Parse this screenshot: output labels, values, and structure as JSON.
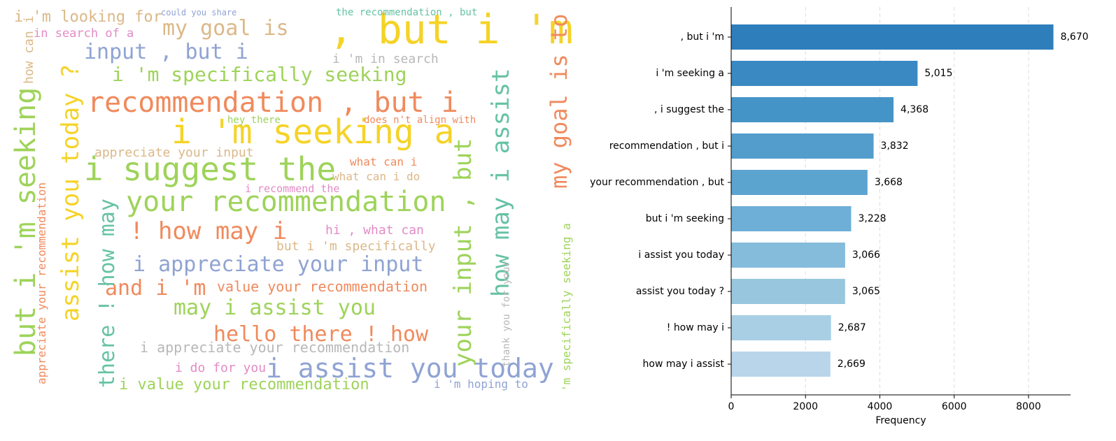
{
  "chart_data": [
    {
      "type": "wordcloud",
      "words": [
        ", but i 'm",
        "i 'm seeking a",
        "recommendation , but i",
        "i suggest the",
        "your recommendation",
        "i 'm specifically seeking",
        "input , but i",
        "my goal is",
        "i 'm looking for",
        "in search of a",
        "! how may i",
        "i appreciate your input",
        "and i 'm",
        "may i assist you",
        "value your recommendation",
        "hello there ! how",
        "i appreciate your recommendation",
        "i assist you today",
        "i value your recommendation",
        "i do for you",
        "hey there",
        "does n't align with",
        "appreciate your input",
        "what can i",
        "what can i do",
        "i recommend the",
        "hi , what can",
        "but i 'm specifically",
        "i 'm in search",
        "the recommendation , but",
        "i 'm hoping to",
        "could you share",
        "but i 'm seeking",
        "assist you today ?",
        "there ! how may",
        "your input , but",
        "how may i assist",
        "my goal is to",
        "'m specifically seeking a",
        "appreciate your recommendation",
        "how can i",
        "thank you for your"
      ]
    },
    {
      "type": "bar",
      "orientation": "horizontal",
      "categories": [
        ", but i 'm",
        "i 'm seeking a",
        ", i suggest the",
        "recommendation , but i",
        "your recommendation , but",
        "but i 'm seeking",
        "i assist you today",
        "assist you today ?",
        "! how may i",
        "how may i assist"
      ],
      "values": [
        8670,
        5015,
        4368,
        3832,
        3668,
        3228,
        3066,
        3065,
        2687,
        2669
      ],
      "value_labels": [
        "8,670",
        "5,015",
        "4,368",
        "3,832",
        "3,668",
        "3,228",
        "3,066",
        "3,065",
        "2,687",
        "2,669"
      ],
      "colors": [
        "#2f7ebc",
        "#3a89c3",
        "#4594c7",
        "#529dcc",
        "#5ca4d0",
        "#6dafd7",
        "#85bcdc",
        "#98c6df",
        "#a9cfe5",
        "#b9d5ea"
      ],
      "xlabel": "Frequency",
      "xlim": [
        0,
        9130
      ],
      "xticks": [
        0,
        2000,
        4000,
        6000,
        8000
      ],
      "grid": true
    }
  ]
}
